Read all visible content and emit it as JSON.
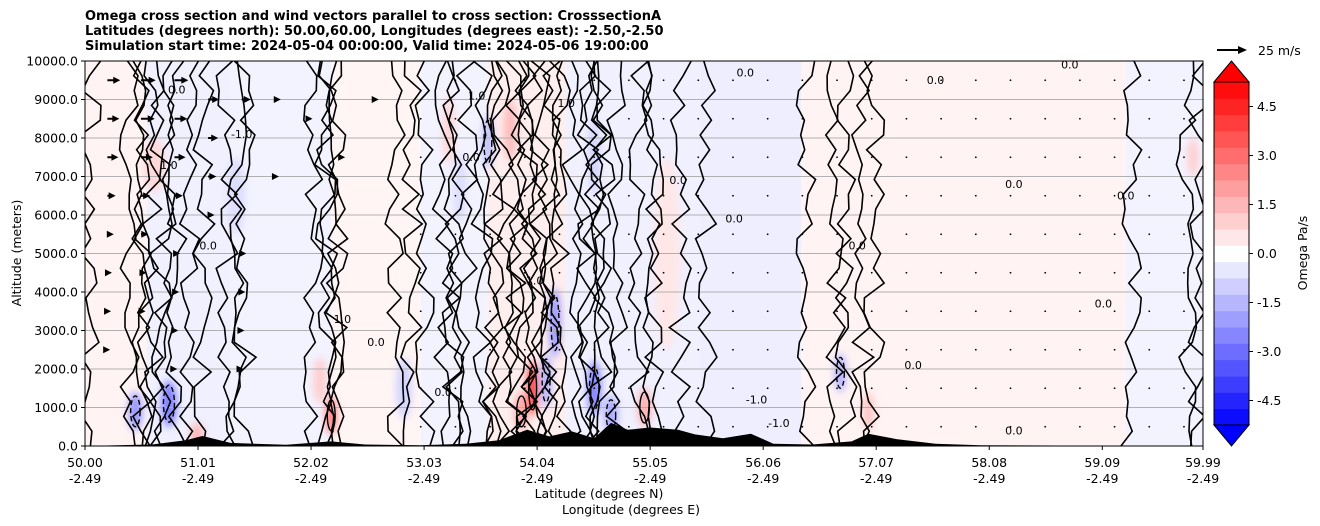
{
  "title_lines": [
    "Omega cross section and wind vectors parallel to cross section: CrosssectionA",
    "Latitudes (degrees north): 50.00,60.00, Longitudes (degrees east): -2.50,-2.50",
    "Simulation start time: 2024-05-04 00:00:00, Valid time: 2024-05-06 19:00:00"
  ],
  "chart_data": {
    "type": "heatmap",
    "title": "Omega cross section and wind vectors parallel to cross section: CrosssectionA",
    "ylabel": "Altitude (meters)",
    "xlabel_lines": [
      "Latitude (degrees N)",
      "Longitude (degrees E)"
    ],
    "ylim": [
      0,
      10000
    ],
    "xlim": [
      50.0,
      59.99
    ],
    "y_ticks": [
      "0.0",
      "1000.0",
      "2000.0",
      "3000.0",
      "4000.0",
      "5000.0",
      "6000.0",
      "7000.0",
      "8000.0",
      "9000.0",
      "10000.0"
    ],
    "x_ticks": [
      {
        "lat": "50.00",
        "lon": "-2.49"
      },
      {
        "lat": "51.01",
        "lon": "-2.49"
      },
      {
        "lat": "52.02",
        "lon": "-2.49"
      },
      {
        "lat": "53.03",
        "lon": "-2.49"
      },
      {
        "lat": "54.04",
        "lon": "-2.49"
      },
      {
        "lat": "55.05",
        "lon": "-2.49"
      },
      {
        "lat": "56.06",
        "lon": "-2.49"
      },
      {
        "lat": "57.07",
        "lon": "-2.49"
      },
      {
        "lat": "58.08",
        "lon": "-2.49"
      },
      {
        "lat": "59.09",
        "lon": "-2.49"
      },
      {
        "lat": "59.99",
        "lon": "-2.49"
      }
    ],
    "grid": "horizontal",
    "colorbar": {
      "label": "Omega Pa/s",
      "range": [
        -5.25,
        5.25
      ],
      "ticks": [
        "-4.5",
        "-3.0",
        "-1.5",
        "0.0",
        "1.5",
        "3.0",
        "4.5"
      ],
      "colors": {
        "negative": "#0000ff",
        "positive": "#ff0000",
        "neutral": "#ffffff"
      }
    },
    "contour_labels": [
      "0.0",
      "1.0",
      "-1.0"
    ],
    "quiver_key": "25 m/s",
    "terrain_color": "#000000",
    "omega_blobs": [
      {
        "lat": 50.45,
        "alt": 900,
        "omega": -2.2,
        "dlat": 0.06,
        "dalt": 500
      },
      {
        "lat": 50.75,
        "alt": 1100,
        "omega": -2.6,
        "dlat": 0.07,
        "dalt": 600
      },
      {
        "lat": 50.62,
        "alt": 7300,
        "omega": 0.8,
        "dlat": 0.1,
        "dalt": 700
      },
      {
        "lat": 51.35,
        "alt": 6500,
        "omega": -0.7,
        "dlat": 0.08,
        "dalt": 1000
      },
      {
        "lat": 52.2,
        "alt": 800,
        "omega": 2.6,
        "dlat": 0.05,
        "dalt": 500
      },
      {
        "lat": 52.1,
        "alt": 1700,
        "omega": 1.0,
        "dlat": 0.06,
        "dalt": 600
      },
      {
        "lat": 52.85,
        "alt": 1500,
        "omega": -0.9,
        "dlat": 0.07,
        "dalt": 800
      },
      {
        "lat": 53.25,
        "alt": 8200,
        "omega": 0.9,
        "dlat": 0.05,
        "dalt": 900
      },
      {
        "lat": 53.35,
        "alt": 6700,
        "omega": -0.7,
        "dlat": 0.06,
        "dalt": 900
      },
      {
        "lat": 53.6,
        "alt": 7900,
        "omega": -1.3,
        "dlat": 0.05,
        "dalt": 700
      },
      {
        "lat": 53.8,
        "alt": 8200,
        "omega": 1.4,
        "dlat": 0.06,
        "dalt": 800
      },
      {
        "lat": 54.0,
        "alt": 1500,
        "omega": 4.0,
        "dlat": 0.05,
        "dalt": 700
      },
      {
        "lat": 53.9,
        "alt": 900,
        "omega": 1.8,
        "dlat": 0.06,
        "dalt": 500
      },
      {
        "lat": 54.2,
        "alt": 3200,
        "omega": -2.2,
        "dlat": 0.05,
        "dalt": 900
      },
      {
        "lat": 54.12,
        "alt": 1700,
        "omega": -1.6,
        "dlat": 0.05,
        "dalt": 700
      },
      {
        "lat": 54.55,
        "alt": 1500,
        "omega": -2.6,
        "dlat": 0.06,
        "dalt": 700
      },
      {
        "lat": 54.7,
        "alt": 800,
        "omega": -1.8,
        "dlat": 0.06,
        "dalt": 500
      },
      {
        "lat": 54.55,
        "alt": 7500,
        "omega": -0.9,
        "dlat": 0.05,
        "dalt": 1000
      },
      {
        "lat": 55.0,
        "alt": 1000,
        "omega": 1.6,
        "dlat": 0.06,
        "dalt": 500
      },
      {
        "lat": 56.75,
        "alt": 1900,
        "omega": -1.6,
        "dlat": 0.05,
        "dalt": 500
      },
      {
        "lat": 57.0,
        "alt": 900,
        "omega": 1.2,
        "dlat": 0.05,
        "dalt": 500
      },
      {
        "lat": 59.9,
        "alt": 7500,
        "omega": 1.0,
        "dlat": 0.05,
        "dalt": 500
      },
      {
        "lat": 51.0,
        "alt": 300,
        "omega": 1.5,
        "dlat": 0.06,
        "dalt": 300
      },
      {
        "lat": 55.2,
        "alt": 5000,
        "omega": 0.5,
        "dlat": 0.12,
        "dalt": 2500
      }
    ],
    "omega_bands": [
      {
        "lat0": 50.0,
        "lat1": 50.55,
        "omega": 0.25
      },
      {
        "lat0": 50.55,
        "lat1": 51.3,
        "omega": -0.3
      },
      {
        "lat0": 51.3,
        "lat1": 52.2,
        "omega": -0.25
      },
      {
        "lat0": 52.2,
        "lat1": 53.0,
        "omega": 0.2
      },
      {
        "lat0": 53.0,
        "lat1": 53.6,
        "omega": -0.25
      },
      {
        "lat0": 53.6,
        "lat1": 54.3,
        "omega": 0.35
      },
      {
        "lat0": 54.3,
        "lat1": 55.5,
        "omega": -0.3
      },
      {
        "lat0": 55.5,
        "lat1": 56.4,
        "omega": -0.35
      },
      {
        "lat0": 56.4,
        "lat1": 59.3,
        "omega": 0.25
      },
      {
        "lat0": 59.3,
        "lat1": 59.99,
        "omega": -0.25
      }
    ],
    "terrain": [
      {
        "lat": 50.0,
        "alt": 0
      },
      {
        "lat": 50.6,
        "alt": 40
      },
      {
        "lat": 50.9,
        "alt": 150
      },
      {
        "lat": 51.05,
        "alt": 260
      },
      {
        "lat": 51.3,
        "alt": 80
      },
      {
        "lat": 51.8,
        "alt": 30
      },
      {
        "lat": 52.2,
        "alt": 120
      },
      {
        "lat": 52.5,
        "alt": 40
      },
      {
        "lat": 53.0,
        "alt": 20
      },
      {
        "lat": 53.4,
        "alt": 60
      },
      {
        "lat": 53.7,
        "alt": 150
      },
      {
        "lat": 53.95,
        "alt": 420
      },
      {
        "lat": 54.15,
        "alt": 250
      },
      {
        "lat": 54.35,
        "alt": 380
      },
      {
        "lat": 54.55,
        "alt": 200
      },
      {
        "lat": 54.7,
        "alt": 600
      },
      {
        "lat": 54.85,
        "alt": 420
      },
      {
        "lat": 55.05,
        "alt": 480
      },
      {
        "lat": 55.3,
        "alt": 420
      },
      {
        "lat": 55.45,
        "alt": 300
      },
      {
        "lat": 55.7,
        "alt": 200
      },
      {
        "lat": 55.95,
        "alt": 320
      },
      {
        "lat": 56.15,
        "alt": 60
      },
      {
        "lat": 56.5,
        "alt": 40
      },
      {
        "lat": 56.85,
        "alt": 120
      },
      {
        "lat": 57.0,
        "alt": 320
      },
      {
        "lat": 57.25,
        "alt": 180
      },
      {
        "lat": 57.6,
        "alt": 60
      },
      {
        "lat": 58.0,
        "alt": 20
      },
      {
        "lat": 59.99,
        "alt": 0
      }
    ],
    "wind_vectors": [
      {
        "lat": 50.2,
        "alt": 9500,
        "u": 14
      },
      {
        "lat": 50.5,
        "alt": 9500,
        "u": 16
      },
      {
        "lat": 50.8,
        "alt": 9500,
        "u": 15
      },
      {
        "lat": 51.1,
        "alt": 9000,
        "u": 12
      },
      {
        "lat": 51.4,
        "alt": 9000,
        "u": 10
      },
      {
        "lat": 50.2,
        "alt": 8500,
        "u": 13
      },
      {
        "lat": 50.5,
        "alt": 8500,
        "u": 15
      },
      {
        "lat": 50.8,
        "alt": 8500,
        "u": 14
      },
      {
        "lat": 51.1,
        "alt": 8000,
        "u": 11
      },
      {
        "lat": 50.2,
        "alt": 7500,
        "u": 12
      },
      {
        "lat": 50.5,
        "alt": 7500,
        "u": 13
      },
      {
        "lat": 50.8,
        "alt": 7500,
        "u": 12
      },
      {
        "lat": 51.1,
        "alt": 7000,
        "u": 9
      },
      {
        "lat": 50.2,
        "alt": 6500,
        "u": 9
      },
      {
        "lat": 50.5,
        "alt": 6500,
        "u": 10
      },
      {
        "lat": 50.8,
        "alt": 6500,
        "u": 9
      },
      {
        "lat": 51.1,
        "alt": 6000,
        "u": 7
      },
      {
        "lat": 50.2,
        "alt": 5500,
        "u": 7
      },
      {
        "lat": 50.5,
        "alt": 5500,
        "u": 8
      },
      {
        "lat": 50.8,
        "alt": 5000,
        "u": 6
      },
      {
        "lat": 51.4,
        "alt": 5000,
        "u": 5
      },
      {
        "lat": 50.2,
        "alt": 4500,
        "u": 5
      },
      {
        "lat": 50.5,
        "alt": 4500,
        "u": 6
      },
      {
        "lat": 50.8,
        "alt": 4000,
        "u": 5
      },
      {
        "lat": 51.4,
        "alt": 4000,
        "u": 4
      },
      {
        "lat": 50.2,
        "alt": 3500,
        "u": 4
      },
      {
        "lat": 50.5,
        "alt": 3500,
        "u": 5
      },
      {
        "lat": 50.8,
        "alt": 3000,
        "u": 4
      },
      {
        "lat": 51.4,
        "alt": 3000,
        "u": 3
      },
      {
        "lat": 50.2,
        "alt": 2500,
        "u": 3
      },
      {
        "lat": 50.8,
        "alt": 2000,
        "u": 3
      },
      {
        "lat": 51.4,
        "alt": 2000,
        "u": 2
      },
      {
        "lat": 51.7,
        "alt": 9000,
        "u": 6
      },
      {
        "lat": 51.7,
        "alt": 7000,
        "u": 4
      },
      {
        "lat": 52.0,
        "alt": 8500,
        "u": 4
      },
      {
        "lat": 52.3,
        "alt": 7500,
        "u": 3
      },
      {
        "lat": 52.6,
        "alt": 9000,
        "u": 3
      }
    ]
  }
}
